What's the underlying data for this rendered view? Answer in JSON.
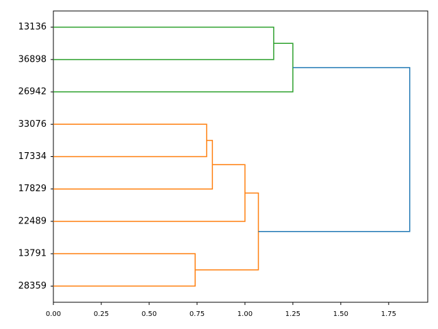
{
  "chart_data": {
    "type": "dendrogram",
    "orientation": "right",
    "categories": [
      "13136",
      "36898",
      "26942",
      "33076",
      "17334",
      "17829",
      "22489",
      "13791",
      "28359"
    ],
    "merges": [
      {
        "children": [
          0,
          1
        ],
        "height": 1.15,
        "color": "#2ca02c"
      },
      {
        "children": [
          9,
          2
        ],
        "height": 1.25,
        "color": "#2ca02c"
      },
      {
        "children": [
          3,
          4
        ],
        "height": 0.8,
        "color": "#ff7f0e"
      },
      {
        "children": [
          11,
          5
        ],
        "height": 0.83,
        "color": "#ff7f0e"
      },
      {
        "children": [
          12,
          6
        ],
        "height": 1.0,
        "color": "#ff7f0e"
      },
      {
        "children": [
          7,
          8
        ],
        "height": 0.74,
        "color": "#ff7f0e"
      },
      {
        "children": [
          13,
          14
        ],
        "height": 1.07,
        "color": "#ff7f0e"
      },
      {
        "children": [
          10,
          15
        ],
        "height": 1.86,
        "color": "#1f77b4"
      }
    ],
    "xlim": [
      0,
      1.954
    ],
    "xticks": [
      {
        "value": 0,
        "label": "0.00"
      },
      {
        "value": 0.25,
        "label": "0.25"
      },
      {
        "value": 0.5,
        "label": "0.50"
      },
      {
        "value": 0.75,
        "label": "0.75"
      },
      {
        "value": 1,
        "label": "1.00"
      },
      {
        "value": 1.25,
        "label": "1.25"
      },
      {
        "value": 1.5,
        "label": "1.50"
      },
      {
        "value": 1.75,
        "label": "1.75"
      }
    ],
    "grid": false
  }
}
